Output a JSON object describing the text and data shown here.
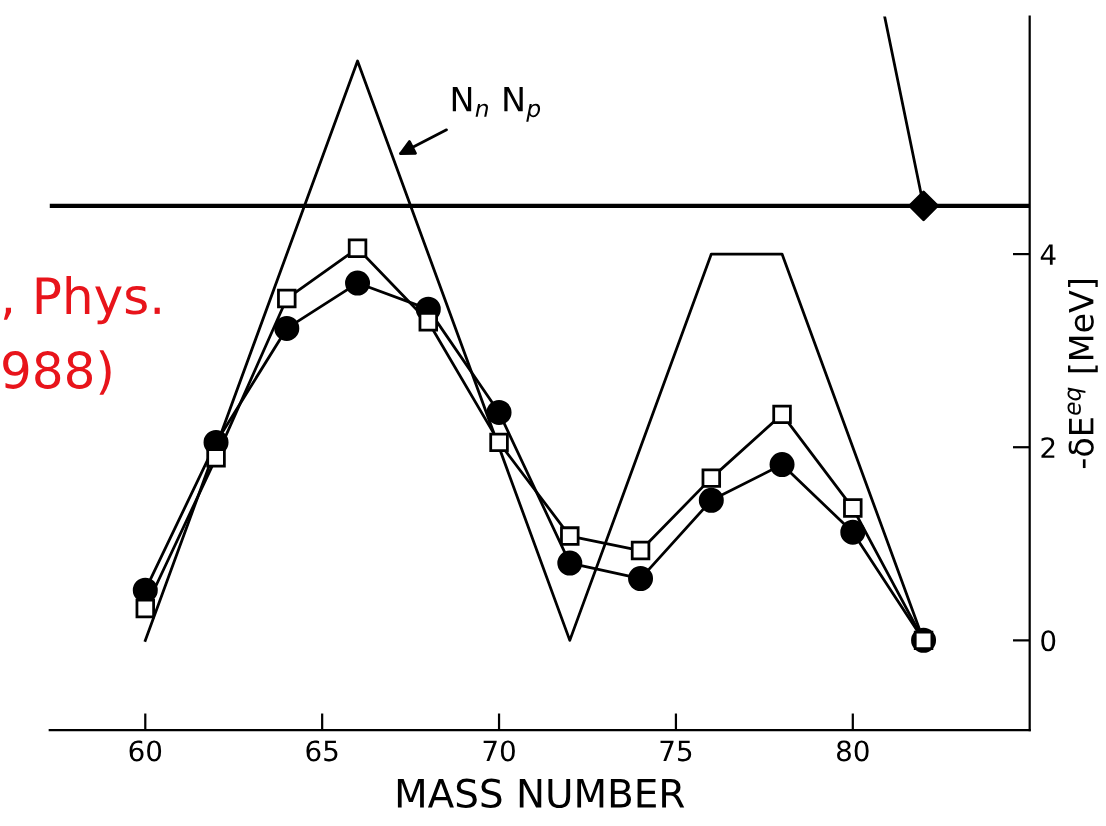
{
  "chart_data": {
    "type": "line",
    "xlabel": "MASS NUMBER",
    "ylabel": "-δE$^{eq}$ [MeV]",
    "xlim": [
      57.3,
      85
    ],
    "xticks": [
      60,
      65,
      70,
      75,
      80
    ],
    "ylim": [
      -0.93,
      6.46
    ],
    "yticks": [
      0,
      2,
      4
    ],
    "grid": false,
    "legend": false,
    "series": [
      {
        "marker": "circle",
        "color": "#000000",
        "x": [
          60,
          62,
          64,
          66,
          68,
          70,
          72,
          74,
          76,
          78,
          80,
          82
        ],
        "values": [
          0.52,
          2.05,
          3.23,
          3.7,
          3.43,
          2.36,
          0.8,
          0.64,
          1.45,
          1.82,
          1.12,
          0
        ]
      },
      {
        "marker": "square",
        "color": "#000000",
        "x": [
          60,
          62,
          64,
          66,
          68,
          70,
          72,
          74,
          76,
          78,
          80,
          82
        ],
        "values": [
          0.33,
          1.89,
          3.54,
          4.06,
          3.3,
          2.05,
          1.08,
          0.93,
          1.68,
          2.34,
          1.37,
          0
        ]
      },
      {
        "marker": "none",
        "color": "#000000",
        "x": [
          60,
          66,
          72,
          76,
          78,
          82
        ],
        "values": [
          0,
          6,
          0,
          4,
          4,
          0
        ]
      },
      {
        "marker": "none",
        "color": "#000000",
        "x": [
          80.9,
          82
        ],
        "values": [
          6.46,
          4.5
        ]
      },
      {
        "type": "scatter",
        "marker": "diamond",
        "color": "#000000",
        "x": [
          82
        ],
        "values": [
          4.5
        ]
      }
    ],
    "ref_lines": [
      {
        "axis": "y",
        "value": 4.5,
        "label": null,
        "color": "#000000"
      }
    ],
    "annotations": [
      {
        "text": "N$_{n}$ N$_{p}$",
        "x": 67,
        "y": 5
      },
      ", Phys.",
      "988)"
    ]
  }
}
